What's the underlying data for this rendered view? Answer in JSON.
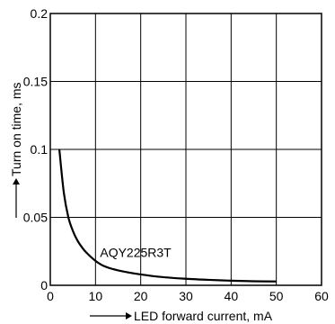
{
  "chart_data": {
    "type": "line",
    "title": "",
    "xlabel": "LED forward current, mA",
    "ylabel": "Turn on time, ms",
    "xlim": [
      0,
      60
    ],
    "ylim": [
      0,
      0.2
    ],
    "x_ticks": [
      "0",
      "10",
      "20",
      "30",
      "40",
      "50",
      "60"
    ],
    "y_ticks": [
      "0",
      "0.05",
      "0.1",
      "0.15",
      "0.2"
    ],
    "grid": true,
    "series": [
      {
        "name": "AQY225R3T",
        "x": [
          2,
          3,
          4,
          5,
          6,
          7,
          8,
          10,
          12,
          15,
          20,
          25,
          30,
          35,
          40,
          45,
          50
        ],
        "y": [
          0.1,
          0.068,
          0.05,
          0.04,
          0.033,
          0.028,
          0.024,
          0.018,
          0.014,
          0.011,
          0.008,
          0.006,
          0.0048,
          0.004,
          0.0034,
          0.003,
          0.0028
        ]
      }
    ],
    "annotations": [
      {
        "text": "AQY225R3T",
        "x": 11,
        "y": 0.021
      }
    ]
  }
}
